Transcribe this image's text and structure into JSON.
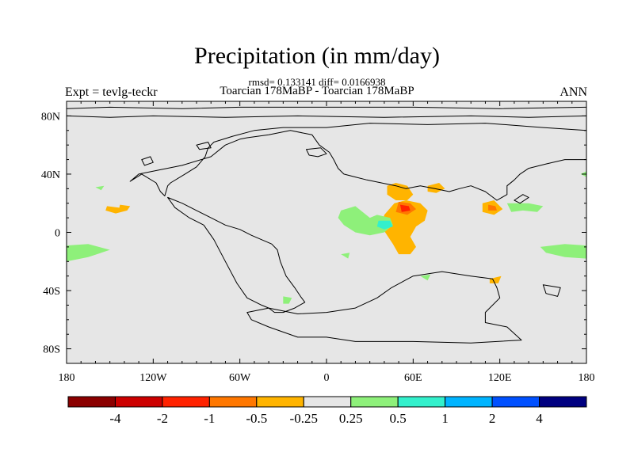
{
  "title": "Precipitation (in mm/day)",
  "stats": "rmsd= 0.133141 diff= 0.0166938",
  "subtitle": "Toarcian 178MaBP - Toarcian 178MaBP",
  "left_label": "Expt = tevlg-teckr",
  "right_label": "ANN",
  "colors": {
    "background_field": "#e6e6e6",
    "coastline": "#000000",
    "frame": "#000000"
  },
  "map": {
    "projection": "cylindrical equidistant",
    "lon_range": [
      -180,
      180
    ],
    "lat_range": [
      -90,
      90
    ],
    "lon_ticks": [
      {
        "value": -180,
        "label": "180"
      },
      {
        "value": -120,
        "label": "120W"
      },
      {
        "value": -60,
        "label": "60W"
      },
      {
        "value": 0,
        "label": "0"
      },
      {
        "value": 60,
        "label": "60E"
      },
      {
        "value": 120,
        "label": "120E"
      },
      {
        "value": 180,
        "label": "180"
      }
    ],
    "lat_ticks": [
      {
        "value": 80,
        "label": "80N"
      },
      {
        "value": 40,
        "label": "40N"
      },
      {
        "value": 0,
        "label": "0"
      },
      {
        "value": -40,
        "label": "40S"
      },
      {
        "value": -80,
        "label": "80S"
      }
    ]
  },
  "colorbar": {
    "colors": [
      "#8b0000",
      "#cc0000",
      "#ff2200",
      "#ff7700",
      "#ffb400",
      "#e6e6e6",
      "#8ef07a",
      "#33f0cc",
      "#00b4ff",
      "#0050ff",
      "#000080"
    ],
    "labels": [
      "-4",
      "-2",
      "-1",
      "-0.5",
      "-0.25",
      "0.25",
      "0.5",
      "1",
      "2",
      "4"
    ]
  },
  "contours": [
    {
      "color": "#ffb400",
      "points": [
        [
          42,
          32
        ],
        [
          48,
          34
        ],
        [
          56,
          32
        ],
        [
          60,
          26
        ],
        [
          56,
          22
        ],
        [
          48,
          22
        ],
        [
          42,
          26
        ]
      ]
    },
    {
      "color": "#ffb400",
      "points": [
        [
          70,
          32
        ],
        [
          78,
          34
        ],
        [
          82,
          30
        ],
        [
          76,
          27
        ],
        [
          70,
          28
        ]
      ]
    },
    {
      "color": "#ffb400",
      "points": [
        [
          55,
          22
        ],
        [
          65,
          20
        ],
        [
          70,
          15
        ],
        [
          68,
          8
        ],
        [
          62,
          4
        ],
        [
          58,
          -3
        ],
        [
          62,
          -10
        ],
        [
          58,
          -15
        ],
        [
          50,
          -15
        ],
        [
          46,
          -8
        ],
        [
          42,
          -2
        ],
        [
          38,
          4
        ],
        [
          40,
          12
        ],
        [
          47,
          20
        ]
      ]
    },
    {
      "color": "#ff7700",
      "points": [
        [
          50,
          21
        ],
        [
          58,
          20
        ],
        [
          62,
          16
        ],
        [
          56,
          12
        ],
        [
          48,
          14
        ]
      ]
    },
    {
      "color": "#ff2200",
      "points": [
        [
          51,
          19
        ],
        [
          57,
          18
        ],
        [
          58,
          15
        ],
        [
          52,
          14
        ]
      ]
    },
    {
      "color": "#ffb400",
      "points": [
        [
          108,
          20
        ],
        [
          116,
          22
        ],
        [
          122,
          16
        ],
        [
          116,
          12
        ],
        [
          108,
          14
        ]
      ]
    },
    {
      "color": "#ff7700",
      "points": [
        [
          112,
          19
        ],
        [
          117,
          18
        ],
        [
          118,
          15
        ],
        [
          112,
          15
        ]
      ]
    },
    {
      "color": "#ffb400",
      "points": [
        [
          -152,
          18
        ],
        [
          -144,
          17
        ],
        [
          -138,
          15
        ],
        [
          -146,
          13
        ],
        [
          -153,
          15
        ]
      ]
    },
    {
      "color": "#ffb400",
      "points": [
        [
          113,
          -32
        ],
        [
          121,
          -30
        ],
        [
          119,
          -35
        ],
        [
          113,
          -35
        ]
      ]
    },
    {
      "color": "#ffb400",
      "points": [
        [
          -143,
          19
        ],
        [
          -136,
          18
        ],
        [
          -138,
          15
        ],
        [
          -144,
          15
        ]
      ]
    },
    {
      "color": "#8ef07a",
      "points": [
        [
          10,
          15
        ],
        [
          20,
          18
        ],
        [
          30,
          10
        ],
        [
          35,
          12
        ],
        [
          44,
          10
        ],
        [
          46,
          5
        ],
        [
          40,
          0
        ],
        [
          30,
          -2
        ],
        [
          20,
          0
        ],
        [
          12,
          5
        ],
        [
          8,
          10
        ]
      ]
    },
    {
      "color": "#33f0cc",
      "points": [
        [
          36,
          8
        ],
        [
          44,
          8
        ],
        [
          46,
          4
        ],
        [
          40,
          2
        ],
        [
          35,
          4
        ]
      ]
    },
    {
      "color": "#8ef07a",
      "points": [
        [
          125,
          20
        ],
        [
          140,
          20
        ],
        [
          150,
          18
        ],
        [
          146,
          14
        ],
        [
          136,
          15
        ],
        [
          128,
          14
        ]
      ]
    },
    {
      "color": "#8ef07a",
      "points": [
        [
          148,
          -10
        ],
        [
          165,
          -8
        ],
        [
          180,
          -9
        ],
        [
          180,
          -18
        ],
        [
          165,
          -17
        ],
        [
          152,
          -14
        ]
      ]
    },
    {
      "color": "#8ef07a",
      "points": [
        [
          -180,
          -9
        ],
        [
          -165,
          -8
        ],
        [
          -150,
          -12
        ],
        [
          -165,
          -17
        ],
        [
          -180,
          -20
        ]
      ]
    },
    {
      "color": "#8ef07a",
      "points": [
        [
          -30,
          -44
        ],
        [
          -24,
          -45
        ],
        [
          -26,
          -49
        ],
        [
          -30,
          -49
        ]
      ]
    },
    {
      "color": "#8ef07a",
      "points": [
        [
          -160,
          31
        ],
        [
          -154,
          32
        ],
        [
          -156,
          29
        ]
      ]
    },
    {
      "color": "#8ef07a",
      "points": [
        [
          10,
          -15
        ],
        [
          16,
          -14
        ],
        [
          15,
          -18
        ]
      ]
    },
    {
      "color": "#8ef07a",
      "points": [
        [
          65,
          -30
        ],
        [
          72,
          -29
        ],
        [
          70,
          -33
        ]
      ]
    },
    {
      "color": "#8ef07a",
      "points": [
        [
          176,
          40
        ],
        [
          180,
          42
        ],
        [
          180,
          38
        ]
      ]
    }
  ],
  "coastlines": [
    {
      "closed": false,
      "points": [
        [
          -180,
          85
        ],
        [
          -150,
          86
        ],
        [
          -100,
          85
        ],
        [
          -60,
          86
        ],
        [
          0,
          86
        ],
        [
          60,
          86
        ],
        [
          120,
          85
        ],
        [
          180,
          86
        ]
      ]
    },
    {
      "closed": false,
      "points": [
        [
          -180,
          80
        ],
        [
          -150,
          79
        ],
        [
          -120,
          80
        ],
        [
          -70,
          79
        ],
        [
          -20,
          80
        ],
        [
          40,
          79
        ],
        [
          100,
          80
        ],
        [
          140,
          79
        ],
        [
          180,
          80
        ]
      ]
    },
    {
      "closed": true,
      "points": [
        [
          -55,
          65
        ],
        [
          -40,
          67
        ],
        [
          -25,
          70
        ],
        [
          -10,
          67
        ],
        [
          -5,
          60
        ],
        [
          2,
          55
        ],
        [
          5,
          50
        ],
        [
          8,
          44
        ],
        [
          12,
          40
        ],
        [
          20,
          38
        ],
        [
          28,
          36
        ],
        [
          38,
          34
        ],
        [
          48,
          32
        ],
        [
          55,
          30
        ],
        [
          65,
          32
        ],
        [
          75,
          30
        ],
        [
          85,
          28
        ],
        [
          92,
          30
        ],
        [
          100,
          32
        ],
        [
          110,
          28
        ],
        [
          118,
          22
        ],
        [
          125,
          26
        ],
        [
          125,
          32
        ],
        [
          130,
          36
        ],
        [
          134,
          40
        ],
        [
          140,
          44
        ],
        [
          152,
          47
        ],
        [
          165,
          50
        ],
        [
          180,
          50
        ],
        [
          180,
          70
        ],
        [
          150,
          72
        ],
        [
          110,
          75
        ],
        [
          70,
          74
        ],
        [
          30,
          75
        ],
        [
          0,
          72
        ],
        [
          -30,
          72
        ],
        [
          -50,
          70
        ],
        [
          -65,
          66
        ],
        [
          -78,
          62
        ],
        [
          -82,
          58
        ],
        [
          -84,
          52
        ],
        [
          -90,
          45
        ],
        [
          -98,
          40
        ],
        [
          -108,
          34
        ],
        [
          -110,
          32
        ],
        [
          -112,
          25
        ],
        [
          -115,
          28
        ],
        [
          -118,
          34
        ],
        [
          -128,
          40
        ],
        [
          -136,
          35
        ],
        [
          -130,
          40
        ],
        [
          -100,
          46
        ],
        [
          -80,
          52
        ],
        [
          -70,
          60
        ],
        [
          -60,
          64
        ]
      ]
    },
    {
      "closed": true,
      "points": [
        [
          -110,
          24
        ],
        [
          -100,
          20
        ],
        [
          -90,
          15
        ],
        [
          -80,
          10
        ],
        [
          -70,
          5
        ],
        [
          -60,
          2
        ],
        [
          -52,
          -2
        ],
        [
          -45,
          -5
        ],
        [
          -38,
          -8
        ],
        [
          -34,
          -12
        ],
        [
          -32,
          -20
        ],
        [
          -28,
          -30
        ],
        [
          -22,
          -38
        ],
        [
          -18,
          -44
        ],
        [
          -15,
          -48
        ],
        [
          -22,
          -52
        ],
        [
          -30,
          -55
        ],
        [
          -36,
          -55
        ],
        [
          -40,
          -52
        ],
        [
          -45,
          -50
        ],
        [
          -55,
          -45
        ],
        [
          -62,
          -35
        ],
        [
          -70,
          -20
        ],
        [
          -78,
          -5
        ],
        [
          -85,
          5
        ],
        [
          -95,
          10
        ],
        [
          -105,
          17
        ]
      ]
    },
    {
      "closed": true,
      "points": [
        [
          -55,
          -55
        ],
        [
          -40,
          -52
        ],
        [
          -20,
          -56
        ],
        [
          0,
          -55
        ],
        [
          20,
          -52
        ],
        [
          35,
          -45
        ],
        [
          45,
          -38
        ],
        [
          60,
          -30
        ],
        [
          80,
          -27
        ],
        [
          100,
          -30
        ],
        [
          115,
          -32
        ],
        [
          118,
          -38
        ],
        [
          120,
          -45
        ],
        [
          110,
          -55
        ],
        [
          110,
          -62
        ],
        [
          125,
          -65
        ],
        [
          135,
          -74
        ],
        [
          100,
          -76
        ],
        [
          60,
          -75
        ],
        [
          20,
          -75
        ],
        [
          0,
          -72
        ],
        [
          -20,
          -72
        ],
        [
          -40,
          -65
        ],
        [
          -52,
          -60
        ]
      ]
    },
    {
      "closed": true,
      "points": [
        [
          -14,
          57
        ],
        [
          -4,
          58
        ],
        [
          0,
          54
        ],
        [
          -6,
          52
        ],
        [
          -12,
          53
        ]
      ]
    },
    {
      "closed": true,
      "points": [
        [
          130,
          22
        ],
        [
          136,
          26
        ],
        [
          140,
          24
        ],
        [
          134,
          20
        ]
      ]
    },
    {
      "closed": true,
      "points": [
        [
          150,
          -36
        ],
        [
          162,
          -38
        ],
        [
          160,
          -44
        ],
        [
          152,
          -42
        ]
      ]
    },
    {
      "closed": true,
      "points": [
        [
          -128,
          50
        ],
        [
          -122,
          52
        ],
        [
          -120,
          48
        ],
        [
          -126,
          46
        ]
      ]
    },
    {
      "closed": true,
      "points": [
        [
          -90,
          60
        ],
        [
          -82,
          62
        ],
        [
          -80,
          58
        ],
        [
          -88,
          57
        ]
      ]
    }
  ]
}
